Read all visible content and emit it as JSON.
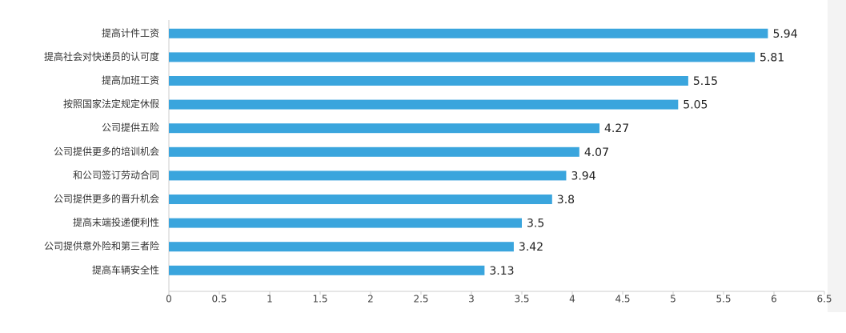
{
  "chart_data": {
    "type": "bar",
    "orientation": "horizontal",
    "categories": [
      "提高计件工资",
      "提高社会对快递员的认可度",
      "提高加班工资",
      "按照国家法定规定休假",
      "公司提供五险",
      "公司提供更多的培训机会",
      "和公司签订劳动合同",
      "公司提供更多的晋升机会",
      "提高末端投递便利性",
      "公司提供意外险和第三者险",
      "提高车辆安全性"
    ],
    "values": [
      5.94,
      5.81,
      5.15,
      5.05,
      4.27,
      4.07,
      3.94,
      3.8,
      3.5,
      3.42,
      3.13
    ],
    "color": "#3aa5dd",
    "xlim": [
      0,
      6.5
    ],
    "xticks": [
      0,
      0.5,
      1,
      1.5,
      2,
      2.5,
      3,
      3.5,
      4,
      4.5,
      5,
      5.5,
      6,
      6.5
    ]
  }
}
